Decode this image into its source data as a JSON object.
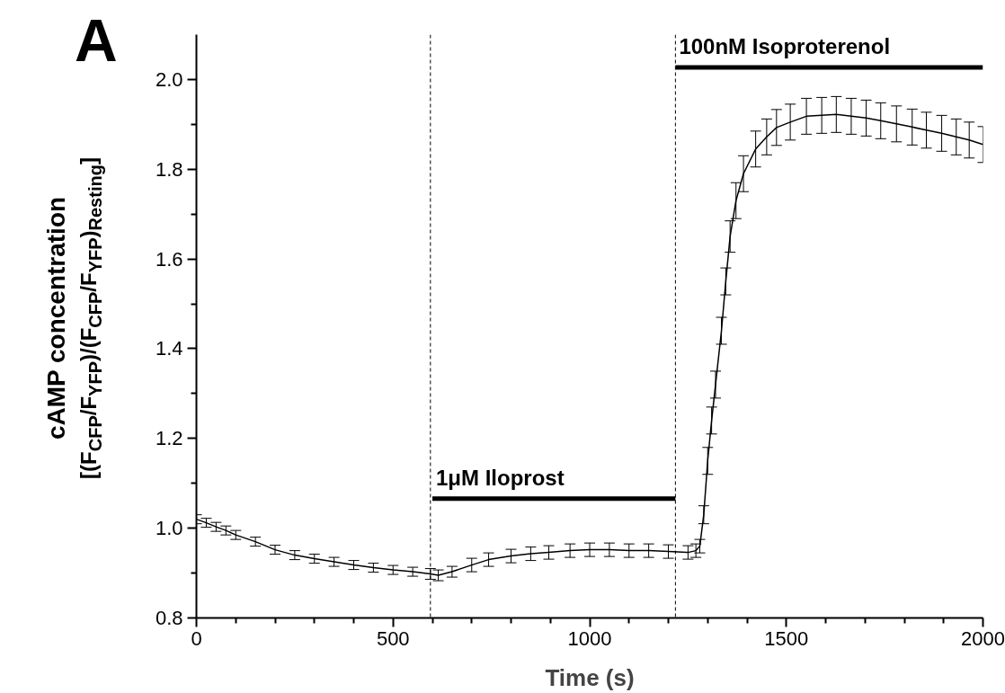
{
  "chart_data": {
    "type": "line",
    "xlabel": "Time (s)",
    "ylabel": "cAMP concentration\n[(F$_{CFP}$/F$_{YFP}$)/(F$_{CFP}$/F$_{YFP}$)$_{Resting}$]",
    "xlim": [
      0,
      2000
    ],
    "ylim": [
      0.8,
      2.1
    ],
    "xticks": [
      0,
      {
        "value": 100,
        "label": null
      },
      {
        "value": 200,
        "label": null
      },
      {
        "value": 300,
        "label": null
      },
      {
        "value": 400,
        "label": null
      },
      500,
      {
        "value": 600,
        "label": null
      },
      {
        "value": 700,
        "label": null
      },
      {
        "value": 800,
        "label": null
      },
      {
        "value": 900,
        "label": null
      },
      1000,
      {
        "value": 1100,
        "label": null
      },
      {
        "value": 1200,
        "label": null
      },
      {
        "value": 1300,
        "label": null
      },
      {
        "value": 1400,
        "label": null
      },
      1500,
      {
        "value": 1600,
        "label": null
      },
      {
        "value": 1700,
        "label": null
      },
      {
        "value": 1800,
        "label": null
      },
      {
        "value": 1900,
        "label": null
      },
      2000
    ],
    "yticks": [
      {
        "value": 0.8,
        "label": "0.8"
      },
      {
        "value": 0.9,
        "label": null
      },
      {
        "value": 1.0,
        "label": "1.0"
      },
      {
        "value": 1.1,
        "label": null
      },
      {
        "value": 1.2,
        "label": "1.2"
      },
      {
        "value": 1.3,
        "label": null
      },
      {
        "value": 1.4,
        "label": "1.4"
      },
      {
        "value": 1.5,
        "label": null
      },
      {
        "value": 1.6,
        "label": "1.6"
      },
      {
        "value": 1.7,
        "label": null
      },
      {
        "value": 1.8,
        "label": "1.8"
      },
      {
        "value": 1.9,
        "label": null
      },
      {
        "value": 2.0,
        "label": "2.0"
      }
    ],
    "series": [
      {
        "color": "#000000",
        "x": [
          0,
          25,
          50,
          75,
          100,
          150,
          200,
          250,
          300,
          350,
          400,
          450,
          500,
          550,
          595,
          615,
          650,
          700,
          743,
          800,
          850,
          896,
          950,
          1000,
          1050,
          1100,
          1150,
          1200,
          1250,
          1270,
          1280,
          1290,
          1300,
          1310,
          1320,
          1335,
          1346,
          1357,
          1372,
          1391,
          1422,
          1450,
          1475,
          1510,
          1551,
          1590,
          1627,
          1665,
          1703,
          1740,
          1780,
          1820,
          1856,
          1895,
          1932,
          1965,
          2000
        ],
        "values": [
          1.02,
          1.012,
          1.003,
          0.995,
          0.985,
          0.97,
          0.952,
          0.94,
          0.932,
          0.925,
          0.918,
          0.912,
          0.907,
          0.903,
          0.898,
          0.895,
          0.903,
          0.918,
          0.93,
          0.938,
          0.943,
          0.946,
          0.95,
          0.952,
          0.952,
          0.95,
          0.95,
          0.948,
          0.946,
          0.95,
          0.96,
          1.03,
          1.15,
          1.24,
          1.32,
          1.44,
          1.55,
          1.65,
          1.73,
          1.79,
          1.845,
          1.872,
          1.893,
          1.905,
          1.918,
          1.92,
          1.922,
          1.918,
          1.914,
          1.908,
          1.901,
          1.894,
          1.887,
          1.88,
          1.872,
          1.865,
          1.855
        ],
        "errors": [
          0.01,
          0.01,
          0.01,
          0.01,
          0.01,
          0.01,
          0.01,
          0.01,
          0.01,
          0.01,
          0.01,
          0.01,
          0.01,
          0.01,
          0.012,
          0.012,
          0.012,
          0.015,
          0.015,
          0.015,
          0.015,
          0.015,
          0.015,
          0.015,
          0.015,
          0.015,
          0.015,
          0.015,
          0.015,
          0.015,
          0.015,
          0.02,
          0.03,
          0.03,
          0.03,
          0.03,
          0.03,
          0.035,
          0.04,
          0.04,
          0.04,
          0.04,
          0.04,
          0.04,
          0.04,
          0.04,
          0.04,
          0.04,
          0.04,
          0.04,
          0.04,
          0.04,
          0.04,
          0.04,
          0.04,
          0.04,
          0.04
        ]
      },
      {
        "color": "#000000",
        "x": [
          600,
          1218
        ],
        "values": [
          1.066,
          1.066
        ]
      },
      {
        "color": "#000000",
        "x": [
          1218,
          2000
        ],
        "values": [
          2.027,
          2.027
        ]
      }
    ],
    "ref_lines": [
      {
        "axis": "x",
        "value": 595,
        "color": "#000000",
        "line_style": "dashed"
      },
      {
        "axis": "x",
        "value": 1218,
        "color": "#000000",
        "line_style": "dashed"
      }
    ],
    "annotations": [
      "A",
      {
        "text": "1μM Iloprost",
        "x": 600,
        "y": 1.066
      },
      {
        "text": "100nM Isoproterenol",
        "x": 1218,
        "y": 2.027
      }
    ],
    "grid": false
  }
}
